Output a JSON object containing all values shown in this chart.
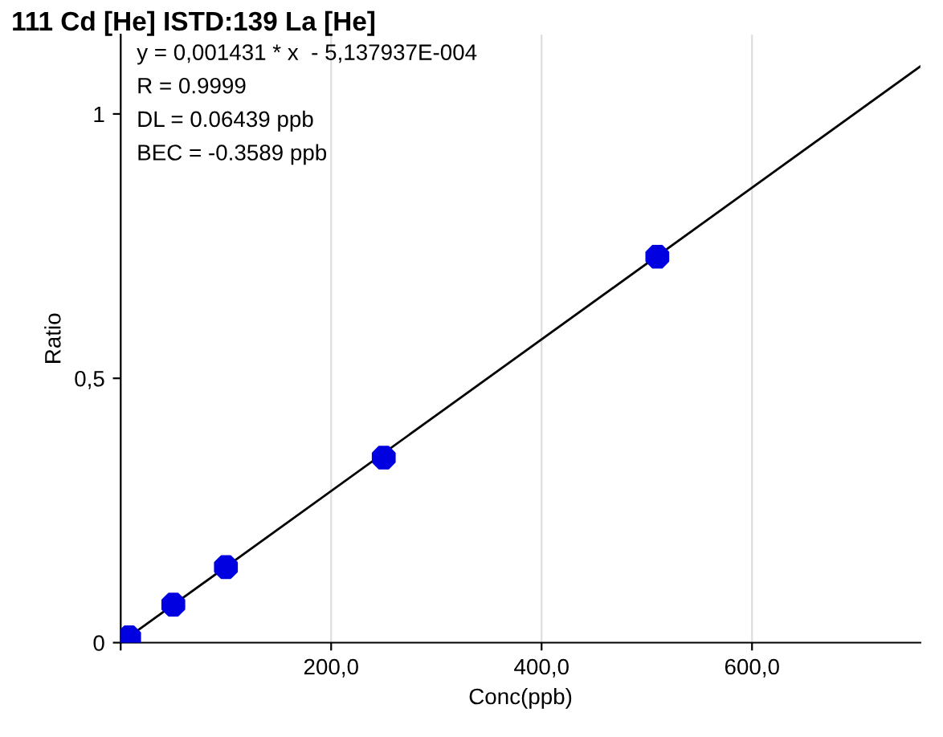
{
  "chart_data": {
    "type": "scatter",
    "title": "111 Cd [He] ISTD:139 La [He]",
    "xlabel": "Conc(ppb)",
    "ylabel": "Ratio",
    "annotations": [
      "y = 0,001431 * x  - 5,137937E-004",
      "R = 0.9999",
      "DL = 0.06439 ppb",
      "BEC = -0.3589 ppb"
    ],
    "series": [
      {
        "color": "#0000e0",
        "marker": "circle",
        "x": [
          8,
          50,
          100,
          250,
          510
        ],
        "values": [
          0.01,
          0.072,
          0.143,
          0.35,
          0.73
        ]
      },
      {
        "type": "line",
        "color": "#000000",
        "line_style": "solid",
        "x": [
          0,
          760
        ],
        "values": [
          0,
          1.09
        ]
      }
    ],
    "xlim": [
      0,
      760
    ],
    "ylim": [
      0,
      1.15
    ],
    "xticks": [
      {
        "value": 0,
        "label": null
      },
      {
        "value": 200,
        "label": "200,0"
      },
      {
        "value": 400,
        "label": "400,0"
      },
      {
        "value": 600,
        "label": "600,0"
      }
    ],
    "yticks": [
      0,
      {
        "value": 0.5,
        "label": "0,5"
      },
      1
    ],
    "grid": "x"
  }
}
